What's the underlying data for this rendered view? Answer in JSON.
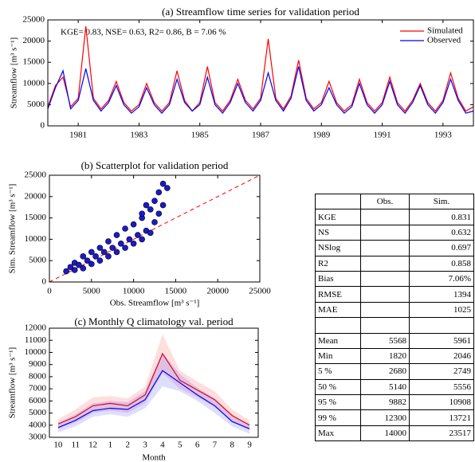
{
  "chart_data": [
    {
      "type": "line",
      "title": "(a) Streamflow time series for validation period",
      "ylabel": "Streamflow [m³ s⁻¹]",
      "annotation": "KGE= 0.83, NSE= 0.63, R2= 0.86, B = 7.06 %",
      "x": [
        1980,
        1980.25,
        1980.5,
        1980.75,
        1981,
        1981.25,
        1981.5,
        1981.75,
        1982,
        1982.25,
        1982.5,
        1982.75,
        1983,
        1983.25,
        1983.5,
        1983.75,
        1984,
        1984.25,
        1984.5,
        1984.75,
        1985,
        1985.25,
        1985.5,
        1985.75,
        1986,
        1986.25,
        1986.5,
        1986.75,
        1987,
        1987.25,
        1987.5,
        1987.75,
        1988,
        1988.25,
        1988.5,
        1988.75,
        1989,
        1989.25,
        1989.5,
        1989.75,
        1990,
        1990.25,
        1990.5,
        1990.75,
        1991,
        1991.25,
        1991.5,
        1991.75,
        1992,
        1992.25,
        1992.5,
        1992.75,
        1993,
        1993.25,
        1993.5,
        1993.75,
        1994
      ],
      "series": [
        {
          "name": "Simulated",
          "color": "#ff0000",
          "values": [
            4500,
            9500,
            11500,
            4500,
            6500,
            23500,
            6500,
            4000,
            6000,
            10500,
            5500,
            3500,
            5000,
            10000,
            5500,
            3500,
            5500,
            13000,
            6000,
            3500,
            5500,
            14000,
            5500,
            3500,
            6000,
            11000,
            6000,
            4000,
            6500,
            20500,
            6500,
            4000,
            7000,
            15500,
            6500,
            4000,
            5500,
            10500,
            5500,
            3500,
            5000,
            11000,
            5500,
            3500,
            5500,
            11500,
            5500,
            3500,
            6000,
            10000,
            5500,
            3500,
            6000,
            12500,
            6500,
            3500,
            4500
          ]
        },
        {
          "name": "Observed",
          "color": "#0000ff",
          "values": [
            4000,
            9000,
            13000,
            4000,
            6000,
            13500,
            6000,
            3500,
            5500,
            9500,
            5000,
            3000,
            4500,
            9000,
            5000,
            3000,
            5000,
            11000,
            5500,
            3500,
            5000,
            11500,
            5000,
            3000,
            5500,
            10000,
            5500,
            3500,
            6000,
            12500,
            6000,
            3500,
            6500,
            14000,
            6000,
            3500,
            5000,
            9000,
            5000,
            3000,
            4500,
            10000,
            5000,
            3000,
            5000,
            10500,
            5000,
            3000,
            5500,
            9500,
            5000,
            3000,
            5500,
            11000,
            6000,
            3000,
            3500
          ]
        }
      ],
      "xlim": [
        1980,
        1994
      ],
      "xticks": [
        1981,
        1983,
        1985,
        1987,
        1989,
        1991,
        1993
      ],
      "ylim": [
        0,
        25000
      ],
      "yticks": [
        0,
        5000,
        10000,
        15000,
        20000,
        25000
      ],
      "legend": "upper right"
    },
    {
      "type": "scatter",
      "title": "(b) Scatterplot for validation period",
      "xlabel": "Obs. Streamflow [m³ s⁻¹]",
      "ylabel": "Sim. Streamflow [m³ s⁻¹]",
      "color": "#1a1acc",
      "diagonal": true,
      "x": [
        2000,
        2500,
        3000,
        3000,
        3500,
        4000,
        4000,
        4500,
        5000,
        5000,
        5500,
        6000,
        6000,
        6500,
        7000,
        7000,
        7500,
        8000,
        8000,
        8500,
        9000,
        9000,
        9500,
        10000,
        10000,
        10500,
        11000,
        11000,
        11500,
        12000,
        12000,
        12500,
        12500,
        13000,
        13000,
        13500,
        13500,
        14000,
        11000,
        11500
      ],
      "values": [
        2500,
        3500,
        2800,
        4500,
        4000,
        3200,
        6000,
        5000,
        4200,
        7000,
        6000,
        5000,
        8000,
        7000,
        6000,
        9500,
        8000,
        7000,
        11000,
        9000,
        8000,
        12500,
        10000,
        9000,
        13500,
        11000,
        10000,
        15000,
        12000,
        11500,
        17000,
        14000,
        19000,
        16000,
        21000,
        18000,
        23000,
        22000,
        16000,
        18000
      ],
      "xlim": [
        0,
        25000
      ],
      "xticks": [
        0,
        5000,
        10000,
        15000,
        20000,
        25000
      ],
      "ylim": [
        0,
        25000
      ],
      "yticks": [
        0,
        5000,
        10000,
        15000,
        20000,
        25000
      ]
    },
    {
      "type": "line",
      "title": "(c) Monthly Q climatology val. period",
      "xlabel": "Month",
      "ylabel": "Streamflow [m³ s⁻¹]",
      "categories": [
        "10",
        "11",
        "12",
        "1",
        "2",
        "3",
        "4",
        "5",
        "6",
        "7",
        "8",
        "9"
      ],
      "series": [
        {
          "color": "#ff0000",
          "values": [
            4100,
            4700,
            5600,
            5800,
            5600,
            6500,
            9900,
            7700,
            6900,
            6100,
            4800,
            4000
          ],
          "upper": [
            4500,
            5300,
            6300,
            6400,
            6200,
            7200,
            11500,
            8500,
            7600,
            6800,
            5300,
            4400
          ],
          "lower": [
            3700,
            4200,
            5000,
            5200,
            5000,
            5800,
            8300,
            7000,
            6300,
            5500,
            4300,
            3600
          ]
        },
        {
          "color": "#0000ff",
          "values": [
            3800,
            4400,
            5200,
            5400,
            5300,
            6100,
            8500,
            7500,
            6500,
            5600,
            4300,
            3700
          ],
          "upper": [
            4200,
            4900,
            5800,
            6000,
            5900,
            6800,
            10000,
            8200,
            7100,
            6200,
            4800,
            4100
          ],
          "lower": [
            3400,
            3900,
            4700,
            4900,
            4700,
            5400,
            7200,
            6800,
            6000,
            5000,
            3900,
            3300
          ]
        }
      ],
      "ylim": [
        3000,
        12000
      ],
      "yticks": [
        3000,
        4000,
        5000,
        6000,
        7000,
        8000,
        9000,
        10000,
        11000,
        12000
      ]
    }
  ],
  "table": {
    "columns": [
      "Obs.",
      "Sim."
    ],
    "metrics": [
      {
        "label": "KGE",
        "sim": 0.831
      },
      {
        "label": "NS",
        "sim": 0.632
      },
      {
        "label": "NSlog",
        "sim": 0.697
      },
      {
        "label": "R2",
        "sim": 0.858
      },
      {
        "label": "Bias",
        "sim": "7.06%"
      },
      {
        "label": "RMSE",
        "sim": 1394
      },
      {
        "label": "MAE",
        "sim": 1025
      }
    ],
    "stats": [
      {
        "label": "Mean",
        "obs": 5568,
        "sim": 5961
      },
      {
        "label": "Min",
        "obs": 1820,
        "sim": 2046
      },
      {
        "label": "5 %",
        "obs": 2680,
        "sim": 2749
      },
      {
        "label": "50 %",
        "obs": 5140,
        "sim": 5556
      },
      {
        "label": "95 %",
        "obs": 9882,
        "sim": 10908
      },
      {
        "label": "99 %",
        "obs": 12300,
        "sim": 13721
      },
      {
        "label": "Max",
        "obs": 14000,
        "sim": 23517
      }
    ]
  }
}
